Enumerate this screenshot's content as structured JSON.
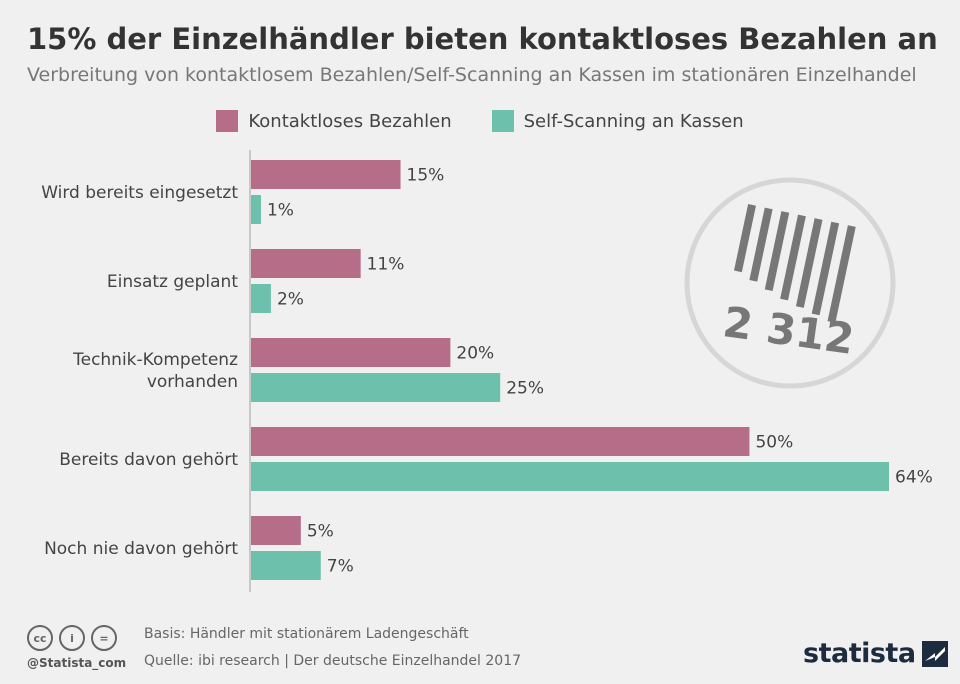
{
  "header": {
    "title": "15% der Einzelhändler bieten kontaktloses Bezahlen an",
    "subtitle": "Verbreitung von kontaktlosem Bezahlen/Self-Scanning an Kassen im stationären Einzelhandel"
  },
  "legend": {
    "items": [
      {
        "label": "Kontaktloses Bezahlen",
        "color": "#b56d88"
      },
      {
        "label": "Self-Scanning an Kassen",
        "color": "#6dc0ab"
      }
    ],
    "placement": "top-center"
  },
  "chart_data": {
    "type": "bar",
    "orientation": "horizontal",
    "categories": [
      [
        "Wird bereits eingesetzt"
      ],
      [
        "Einsatz geplant"
      ],
      [
        "Technik-Kompetenz",
        "vorhanden"
      ],
      [
        "Bereits davon gehört"
      ],
      [
        "Noch nie davon gehört"
      ]
    ],
    "series": [
      {
        "name": "Kontaktloses Bezahlen",
        "color": "#b56d88",
        "values": [
          15,
          11,
          20,
          50,
          5
        ]
      },
      {
        "name": "Self-Scanning an Kassen",
        "color": "#6dc0ab",
        "values": [
          1,
          2,
          25,
          64,
          7
        ]
      }
    ],
    "value_suffix": "%",
    "xlim": [
      0,
      64
    ],
    "grid": false
  },
  "illustration": {
    "icon": "barcode-sticker-icon",
    "number": "2 312"
  },
  "footer": {
    "license_icons": [
      "cc-icon",
      "by-icon",
      "nd-icon"
    ],
    "license_glyphs": [
      "cc",
      "i",
      "="
    ],
    "handle": "@Statista_com",
    "basis": "Basis: Händler mit stationärem Ladengeschäft",
    "source": "Quelle: ibi research | Der deutsche Einzelhandel 2017",
    "brand": "statista"
  }
}
